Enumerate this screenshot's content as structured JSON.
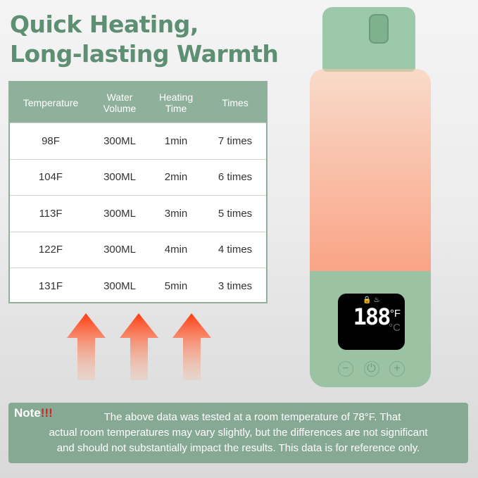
{
  "title": {
    "line1": "Quick Heating,",
    "line2": "Long-lasting Warmth"
  },
  "table": {
    "headers": [
      "Temperature",
      "Water Volume",
      "Heating Time",
      "Times"
    ],
    "rows": [
      [
        "98F",
        "300ML",
        "1min",
        "7 times"
      ],
      [
        "104F",
        "300ML",
        "2min",
        "6 times"
      ],
      [
        "113F",
        "300ML",
        "3min",
        "5 times"
      ],
      [
        "122F",
        "300ML",
        "4min",
        "4 times"
      ],
      [
        "131F",
        "300ML",
        "5min",
        "3 times"
      ]
    ]
  },
  "display": {
    "digits": "188",
    "unit_f": "°F",
    "unit_c": "°C",
    "minus": "−",
    "plus": "+",
    "power": "⏻"
  },
  "note": {
    "label": "Note",
    "emphasis": "!!!",
    "line1": "The above data was tested at a room temperature of 78°F. That",
    "line2": "actual room temperatures may vary slightly, but the differences are not significant",
    "line3": "and should not substantially impact the results. This data is for reference only."
  },
  "colors": {
    "accent": "#5f8f73",
    "header": "#8fb09a",
    "arrow": "#ff5a1f"
  }
}
